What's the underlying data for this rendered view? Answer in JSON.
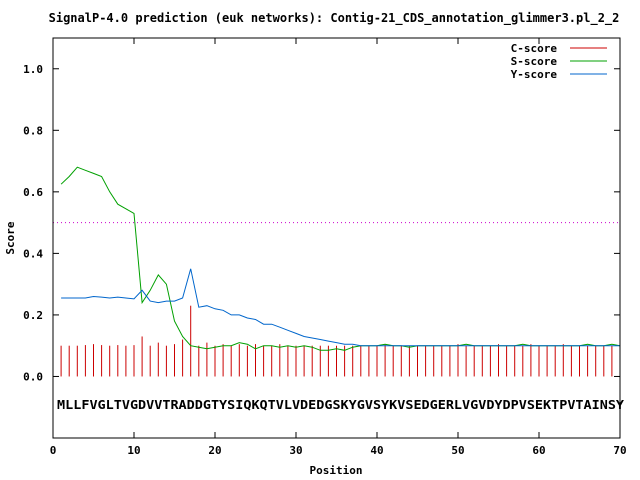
{
  "chart_data": {
    "type": "line",
    "title": "SignalP-4.0 prediction (euk networks): Contig-21_CDS_annotation_glimmer3.pl_2_2",
    "xlabel": "Position",
    "ylabel": "Score",
    "xlim": [
      0,
      70
    ],
    "ylim": [
      -0.2,
      1.1
    ],
    "xticks": [
      0,
      10,
      20,
      30,
      40,
      50,
      60,
      70
    ],
    "yticks": [
      0.0,
      0.2,
      0.4,
      0.6,
      0.8,
      1.0
    ],
    "xtick_labels": [
      "0",
      "10",
      "20",
      "30",
      "40",
      "50",
      "60",
      "70"
    ],
    "ytick_labels": [
      "0.0",
      "0.2",
      "0.4",
      "0.6",
      "0.8",
      "1.0"
    ],
    "threshold": 0.5,
    "sequence": "MLLFVGLTVGDVVTRADDGTYSIQKQTVLVDEDGSKYGVSYKVSEDGERLVGVDYDPVSEKTPVTAINSY",
    "legend_position": "top-right",
    "series": [
      {
        "name": "C-score",
        "style": "impulses",
        "color": "#cc0000",
        "values": [
          0.1,
          0.1,
          0.1,
          0.102,
          0.105,
          0.102,
          0.1,
          0.102,
          0.1,
          0.102,
          0.13,
          0.1,
          0.11,
          0.1,
          0.105,
          0.12,
          0.23,
          0.1,
          0.11,
          0.1,
          0.105,
          0.1,
          0.105,
          0.1,
          0.105,
          0.1,
          0.1,
          0.105,
          0.1,
          0.1,
          0.1,
          0.1,
          0.1,
          0.1,
          0.1,
          0.1,
          0.1,
          0.1,
          0.1,
          0.1,
          0.105,
          0.1,
          0.1,
          0.1,
          0.1,
          0.1,
          0.1,
          0.1,
          0.1,
          0.105,
          0.1,
          0.1,
          0.1,
          0.1,
          0.105,
          0.1,
          0.1,
          0.1,
          0.105,
          0.1,
          0.1,
          0.1,
          0.105,
          0.1,
          0.1,
          0.1,
          0.1,
          0.1,
          0.1,
          0.1
        ]
      },
      {
        "name": "S-score",
        "style": "line",
        "color": "#00a000",
        "values": [
          0.625,
          0.65,
          0.68,
          0.67,
          0.66,
          0.65,
          0.6,
          0.56,
          0.545,
          0.53,
          0.24,
          0.28,
          0.33,
          0.3,
          0.18,
          0.13,
          0.1,
          0.095,
          0.09,
          0.095,
          0.1,
          0.1,
          0.11,
          0.105,
          0.09,
          0.1,
          0.1,
          0.095,
          0.1,
          0.095,
          0.1,
          0.095,
          0.085,
          0.085,
          0.09,
          0.085,
          0.095,
          0.1,
          0.1,
          0.1,
          0.105,
          0.1,
          0.1,
          0.095,
          0.1,
          0.1,
          0.1,
          0.1,
          0.1,
          0.1,
          0.105,
          0.1,
          0.1,
          0.1,
          0.1,
          0.1,
          0.1,
          0.105,
          0.1,
          0.1,
          0.1,
          0.1,
          0.1,
          0.1,
          0.1,
          0.105,
          0.1,
          0.1,
          0.105,
          0.1
        ]
      },
      {
        "name": "Y-score",
        "style": "line",
        "color": "#0066cc",
        "values": [
          0.255,
          0.255,
          0.255,
          0.255,
          0.26,
          0.258,
          0.255,
          0.258,
          0.255,
          0.252,
          0.28,
          0.245,
          0.24,
          0.245,
          0.245,
          0.255,
          0.35,
          0.225,
          0.23,
          0.22,
          0.215,
          0.2,
          0.2,
          0.19,
          0.185,
          0.17,
          0.17,
          0.16,
          0.15,
          0.14,
          0.13,
          0.125,
          0.12,
          0.115,
          0.11,
          0.105,
          0.105,
          0.1,
          0.1,
          0.1,
          0.1,
          0.1,
          0.1,
          0.1,
          0.1,
          0.1,
          0.1,
          0.1,
          0.1,
          0.1,
          0.1,
          0.1,
          0.1,
          0.1,
          0.1,
          0.1,
          0.1,
          0.1,
          0.1,
          0.1,
          0.1,
          0.1,
          0.1,
          0.1,
          0.1,
          0.1,
          0.1,
          0.1,
          0.1,
          0.1
        ]
      }
    ],
    "colors": {
      "threshold": "#cc00cc",
      "frame": "#000000",
      "background": "#ffffff"
    }
  }
}
